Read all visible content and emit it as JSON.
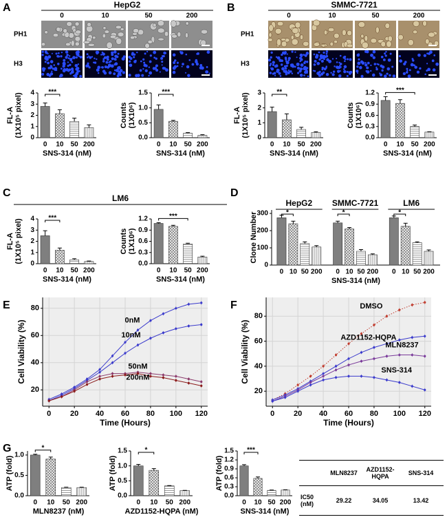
{
  "panel_labels": [
    "A",
    "B",
    "C",
    "D",
    "E",
    "F",
    "G"
  ],
  "image_panels": [
    {
      "title": "HepG2",
      "concentrations": [
        "0",
        "10",
        "50",
        "200"
      ],
      "rows": [
        "PH1",
        "H3"
      ]
    },
    {
      "title": "SMMC-7721",
      "concentrations": [
        "0",
        "10",
        "50",
        "200"
      ],
      "rows": [
        "PH1",
        "H3"
      ]
    }
  ],
  "group_title": "LM6",
  "chart_data": [
    {
      "type": "bar",
      "categories": [
        "0",
        "10",
        "50",
        "200"
      ],
      "values": [
        2.8,
        2.15,
        1.45,
        0.9
      ],
      "errors": [
        0.3,
        0.35,
        0.3,
        0.25
      ],
      "ylim": [
        0,
        4
      ],
      "yticks": [
        0,
        1,
        2,
        3,
        4
      ],
      "ylabel": [
        "FL-A",
        "(1X10⁵ pixel)"
      ],
      "xlabel": "SNS-314 (nM)",
      "annotation": "***",
      "color": "#7f7f7f"
    },
    {
      "type": "bar",
      "categories": [
        "0",
        "10",
        "50",
        "200"
      ],
      "values": [
        0.95,
        0.55,
        0.15,
        0.08
      ],
      "errors": [
        0.15,
        0.03,
        0.02,
        0.02
      ],
      "ylim": [
        0,
        1.5
      ],
      "yticks": [
        {
          "value": 0,
          "label": "0.0"
        },
        {
          "value": 0.5,
          "label": "0.5"
        },
        {
          "value": 1,
          "label": "1.0"
        },
        {
          "value": 1.5,
          "label": "1.5"
        }
      ],
      "ylabel": [
        "Counts",
        "(1X10⁶)"
      ],
      "xlabel": "SNS-314 (nM)",
      "annotation": "***",
      "color": "#7f7f7f"
    },
    {
      "type": "bar",
      "categories": [
        "0",
        "10",
        "50",
        "200"
      ],
      "values": [
        1.75,
        1.2,
        0.55,
        0.35
      ],
      "errors": [
        0.3,
        0.4,
        0.15,
        0.05
      ],
      "ylim": [
        0,
        3
      ],
      "yticks": [
        0,
        1,
        2,
        3
      ],
      "ylabel": [
        "FL-A",
        "(1X10⁵ pixel)"
      ],
      "xlabel": "SNS-314 (nM)",
      "annotation": "**",
      "color": "#7f7f7f"
    },
    {
      "type": "bar",
      "categories": [
        "0",
        "10",
        "50",
        "200"
      ],
      "values": [
        1.0,
        0.92,
        0.3,
        0.15
      ],
      "errors": [
        0.1,
        0.1,
        0.04,
        0.01
      ],
      "ylim": [
        0,
        1.2
      ],
      "yticks": [
        {
          "value": 0,
          "label": "0.0"
        },
        {
          "value": 0.3,
          "label": "0.3"
        },
        {
          "value": 0.6,
          "label": "0.6"
        },
        {
          "value": 0.9,
          "label": "0.9"
        },
        {
          "value": 1.2,
          "label": "1.2"
        }
      ],
      "ylabel": [
        "Counts",
        "(1X10⁶)"
      ],
      "xlabel": "SNS-314 (nM)",
      "annotation": "***",
      "color": "#7f7f7f"
    },
    {
      "type": "bar",
      "categories": [
        "0",
        "10",
        "50",
        "200"
      ],
      "values": [
        2.5,
        1.2,
        0.35,
        0.2
      ],
      "errors": [
        0.45,
        0.2,
        0.1,
        0.04
      ],
      "ylim": [
        0,
        4
      ],
      "yticks": [
        0,
        1,
        2,
        3,
        4
      ],
      "ylabel": [
        "FL-A",
        "(1X10⁵ pixel)"
      ],
      "xlabel": "SNS-314 (nM)",
      "annotation": "***",
      "color": "#7f7f7f"
    },
    {
      "type": "bar",
      "categories": [
        "0",
        "10",
        "50",
        "200"
      ],
      "values": [
        1.08,
        1.0,
        0.53,
        0.18
      ],
      "errors": [
        0.02,
        0.03,
        0.02,
        0.02
      ],
      "ylim": [
        0,
        1.2
      ],
      "yticks": [
        {
          "value": 0,
          "label": "0.0"
        },
        {
          "value": 0.3,
          "label": "0.3"
        },
        {
          "value": 0.6,
          "label": "0.6"
        },
        {
          "value": 0.9,
          "label": "0.9"
        },
        {
          "value": 1.2,
          "label": "1.2"
        }
      ],
      "ylabel": [
        "Counts",
        "(1X10⁶)"
      ],
      "xlabel": "SNS-314 (nM)",
      "annotation": "***",
      "color": "#7f7f7f"
    },
    {
      "type": "grouped_bar",
      "categories": [
        "0",
        "10",
        "50",
        "200"
      ],
      "groups": [
        {
          "name": "HepG2",
          "values": [
            275,
            240,
            125,
            105
          ],
          "errors": [
            15,
            15,
            10,
            8
          ]
        },
        {
          "name": "SMMC-7721",
          "values": [
            245,
            210,
            80,
            60
          ],
          "errors": [
            10,
            8,
            10,
            5
          ]
        },
        {
          "name": "LM6",
          "values": [
            275,
            225,
            130,
            80
          ],
          "errors": [
            10,
            18,
            5,
            8
          ]
        }
      ],
      "ylim": [
        0,
        320
      ],
      "yticks": [
        0,
        100,
        200,
        300
      ],
      "ylabel": [
        "Clone Number"
      ],
      "xlabel": "SNS-314 (nM)",
      "annotation": "*",
      "color": "#7f7f7f"
    },
    {
      "type": "line",
      "x": [
        0,
        10,
        20,
        30,
        40,
        50,
        60,
        70,
        80,
        90,
        100,
        110,
        120
      ],
      "series": [
        {
          "name": "0nM",
          "color": "#3a3acc",
          "values": [
            13,
            17,
            22,
            28,
            35,
            45,
            55,
            64,
            71,
            76,
            80,
            83,
            84
          ]
        },
        {
          "name": "10nM",
          "color": "#3a3acc",
          "values": [
            12,
            16,
            21,
            27,
            33,
            40,
            47,
            53,
            58,
            62,
            65,
            67,
            68
          ]
        },
        {
          "name": "50nM",
          "color": "#8b3a6b",
          "values": [
            12,
            15,
            20,
            26,
            30,
            32,
            32,
            33,
            32,
            31,
            30,
            28,
            26
          ]
        },
        {
          "name": "200nM",
          "color": "#8b1a1a",
          "values": [
            12,
            15,
            19,
            24,
            28,
            30,
            31,
            32,
            30,
            29,
            27,
            25,
            23
          ]
        }
      ],
      "xlim": [
        -5,
        125
      ],
      "xticks": [
        0,
        20,
        40,
        60,
        80,
        100,
        120
      ],
      "ylim": [
        8,
        88
      ],
      "yticks": [
        20,
        40,
        60,
        80
      ],
      "xlabel": "Time (Hours)",
      "ylabel": "Cell Viability (%)",
      "grid": true
    },
    {
      "type": "line",
      "x": [
        0,
        10,
        20,
        30,
        40,
        50,
        60,
        70,
        80,
        90,
        100,
        110,
        120
      ],
      "series": [
        {
          "name": "DMSO",
          "color": "#c0392b",
          "values": [
            13,
            18,
            25,
            32,
            40,
            49,
            58,
            66,
            73,
            80,
            85,
            89,
            91
          ]
        },
        {
          "name": "AZD1152-HQPA",
          "color": "#3a3acc",
          "values": [
            13,
            17,
            22,
            28,
            34,
            40,
            46,
            51,
            55,
            58,
            61,
            63,
            64
          ]
        },
        {
          "name": "MLN8237",
          "color": "#7a3a9a",
          "values": [
            12,
            16,
            21,
            27,
            32,
            37,
            41,
            44,
            46,
            48,
            49,
            49,
            48
          ]
        },
        {
          "name": "SNS-314",
          "color": "#3a3acc",
          "values": [
            12,
            15,
            20,
            25,
            29,
            31,
            32,
            32,
            31,
            29,
            27,
            24,
            21
          ]
        }
      ],
      "xlim": [
        -5,
        125
      ],
      "xticks": [
        0,
        20,
        40,
        60,
        80,
        100,
        120
      ],
      "ylim": [
        8,
        95
      ],
      "yticks": [
        20,
        40,
        60,
        80
      ],
      "xlabel": "Time (Hours)",
      "ylabel": "Cell Viability (%)",
      "grid": true
    },
    {
      "type": "bar",
      "categories": [
        "0",
        "10",
        "50",
        "200"
      ],
      "values": [
        1.0,
        0.9,
        0.2,
        0.2
      ],
      "errors": [
        0.02,
        0.05,
        0.01,
        0.01
      ],
      "ylim": [
        0,
        1.1
      ],
      "yticks": [
        {
          "value": 0,
          "label": "0.0"
        },
        {
          "value": 0.5,
          "label": "0.5"
        },
        {
          "value": 1,
          "label": "1.0"
        }
      ],
      "ylabel": [
        "ATP (fold)"
      ],
      "xlabel": "MLN8237 (nM)",
      "annotation": "*",
      "color": "#7f7f7f"
    },
    {
      "type": "bar",
      "categories": [
        "0",
        "10",
        "50",
        "200"
      ],
      "values": [
        1.0,
        0.85,
        0.33,
        0.17
      ],
      "errors": [
        0.05,
        0.06,
        0.01,
        0.01
      ],
      "ylim": [
        0,
        1.5
      ],
      "yticks": [
        {
          "value": 0,
          "label": "0.0"
        },
        {
          "value": 0.5,
          "label": "0.5"
        },
        {
          "value": 1,
          "label": "1.0"
        },
        {
          "value": 1.5,
          "label": "1.5"
        }
      ],
      "ylabel": [
        "ATP (fold)"
      ],
      "xlabel": "AZD1152-HQPA (nM)",
      "annotation": "*",
      "color": "#7f7f7f"
    },
    {
      "type": "bar",
      "categories": [
        "0",
        "10",
        "50",
        "200"
      ],
      "values": [
        1.0,
        0.58,
        0.18,
        0.19
      ],
      "errors": [
        0.04,
        0.05,
        0.01,
        0.01
      ],
      "ylim": [
        0,
        1.5
      ],
      "yticks": [
        {
          "value": 0,
          "label": "0.0"
        },
        {
          "value": 0.3,
          "label": "0.3"
        },
        {
          "value": 0.6,
          "label": "0.6"
        },
        {
          "value": 0.9,
          "label": "0.9"
        },
        {
          "value": 1.2,
          "label": "1.2"
        },
        {
          "value": 1.5,
          "label": "1.5"
        }
      ],
      "ylabel": [
        "ATP (fold)"
      ],
      "xlabel": "SNS-314 (nM)",
      "annotation": "***",
      "color": "#7f7f7f"
    }
  ],
  "table": {
    "header": [
      "MLN8237",
      "AZD1152-HQPA",
      "SNS-314"
    ],
    "row_label": "IC50 (nM)",
    "values": [
      29.22,
      34.05,
      13.42
    ]
  }
}
